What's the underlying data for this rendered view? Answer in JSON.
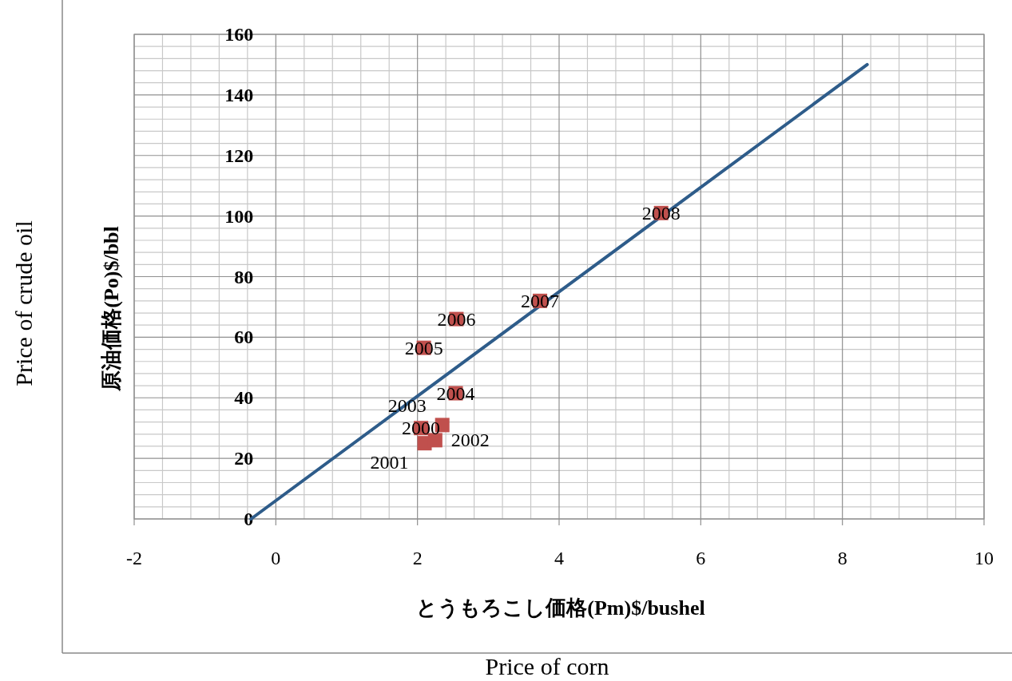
{
  "chart_data": {
    "type": "scatter",
    "xlabel": "とうもろこし価格(Pm)$/bushel",
    "ylabel": "原油価格(Po)$/bbl",
    "xlim": [
      -2,
      10
    ],
    "xticks": [
      {
        "value": -2,
        "label": "-2"
      },
      0,
      2,
      4,
      6,
      8,
      10
    ],
    "ylim": [
      0,
      160
    ],
    "yticks": [
      0,
      20,
      40,
      60,
      80,
      100,
      120,
      140,
      160
    ],
    "grid": true,
    "marker": "square",
    "series": [
      {
        "color": "#c0504d",
        "x": [
          2.05,
          2.1,
          2.25,
          2.35,
          2.54,
          2.09,
          2.55,
          3.73,
          5.44
        ],
        "values": [
          30,
          25,
          26,
          31,
          41.5,
          56.5,
          66,
          72,
          101
        ]
      },
      {
        "type": "line",
        "color": "#2e5c8a",
        "marker": "none",
        "x": [
          -0.35,
          8.35
        ],
        "values": [
          0,
          150
        ]
      }
    ],
    "annotations": [
      {
        "text": "2000",
        "x": 2.05,
        "y": 30
      },
      {
        "text": "2001",
        "x": 2.1,
        "y": 25
      },
      {
        "text": "2002",
        "x": 2.25,
        "y": 26
      },
      {
        "text": "2003",
        "x": 2.35,
        "y": 31
      },
      {
        "text": "2004",
        "x": 2.54,
        "y": 41.5
      },
      {
        "text": "2005",
        "x": 2.09,
        "y": 56.5
      },
      {
        "text": "2006",
        "x": 2.55,
        "y": 66
      },
      {
        "text": "2007",
        "x": 3.73,
        "y": 72
      },
      {
        "text": "2008",
        "x": 5.44,
        "y": 101
      },
      "Price of crude oil",
      "Price of corn"
    ]
  }
}
